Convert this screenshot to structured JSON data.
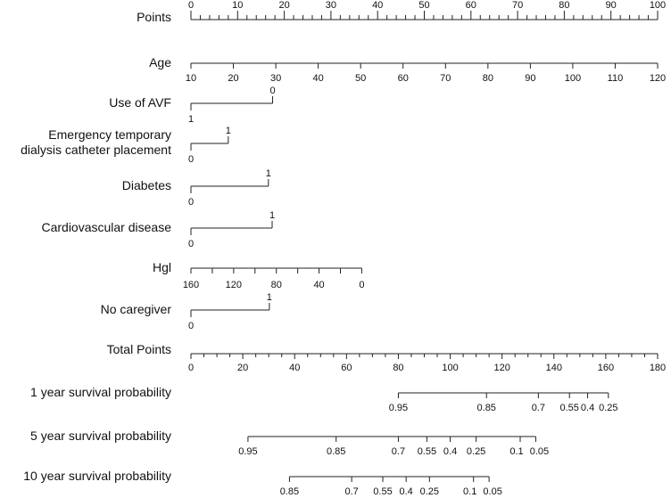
{
  "chart_data": {
    "type": "nomogram",
    "title": "",
    "points_scale": {
      "label": "Points",
      "min": 0,
      "max": 100,
      "major_step": 10,
      "minor_step": 2
    },
    "variables": [
      {
        "name": "Age",
        "type": "continuous",
        "values": [
          10,
          20,
          30,
          40,
          50,
          60,
          70,
          80,
          90,
          100,
          110,
          120
        ],
        "points": [
          0,
          9.09,
          18.18,
          27.27,
          36.36,
          45.45,
          54.55,
          63.64,
          72.73,
          81.82,
          90.91,
          100
        ]
      },
      {
        "name": "Use of AVF",
        "type": "categorical",
        "levels": [
          {
            "label": "0",
            "points": 17.5
          },
          {
            "label": "1",
            "points": 0
          }
        ]
      },
      {
        "name": "Emergency temporary dialysis catheter placement",
        "label_lines": [
          "Emergency temporary",
          "dialysis catheter placement"
        ],
        "type": "categorical",
        "levels": [
          {
            "label": "1",
            "points": 8
          },
          {
            "label": "0",
            "points": 0
          }
        ]
      },
      {
        "name": "Diabetes",
        "type": "categorical",
        "levels": [
          {
            "label": "1",
            "points": 16.6
          },
          {
            "label": "0",
            "points": 0
          }
        ]
      },
      {
        "name": "Cardiovascular disease",
        "type": "categorical",
        "levels": [
          {
            "label": "1",
            "points": 17.4
          },
          {
            "label": "0",
            "points": 0
          }
        ]
      },
      {
        "name": "Hgl",
        "type": "continuous",
        "labeled_values": [
          160,
          120,
          80,
          40,
          0
        ],
        "minor_values": [
          140,
          100,
          60,
          20
        ],
        "points_at_max": 0,
        "points_at_min": 36.6,
        "range": [
          160,
          0
        ]
      },
      {
        "name": "No caregiver",
        "type": "categorical",
        "levels": [
          {
            "label": "1",
            "points": 16.8
          },
          {
            "label": "0",
            "points": 0
          }
        ]
      }
    ],
    "total_points_scale": {
      "label": "Total Points",
      "min": 0,
      "max": 180,
      "labeled_step": 20,
      "minor_step": 5
    },
    "survival_scales": [
      {
        "name": "1 year survival probability",
        "probabilities": [
          "0.95",
          "0.85",
          "0.7",
          "0.55",
          "0.4",
          "0.25"
        ],
        "total_points": [
          80,
          114,
          134,
          146,
          153,
          161
        ]
      },
      {
        "name": "5 year survival probability",
        "probabilities": [
          "0.95",
          "0.85",
          "0.7",
          "0.55",
          "0.4",
          "0.25",
          "0.1",
          "0.05"
        ],
        "total_points": [
          22,
          56,
          80,
          91,
          100,
          110,
          127,
          133
        ]
      },
      {
        "name": "10 year survival probability",
        "probabilities": [
          "0.85",
          "0.7",
          "0.55",
          "0.4",
          "0.25",
          "0.1",
          "0.05"
        ],
        "total_points": [
          38,
          62,
          74,
          83,
          92,
          109,
          115
        ]
      }
    ]
  }
}
